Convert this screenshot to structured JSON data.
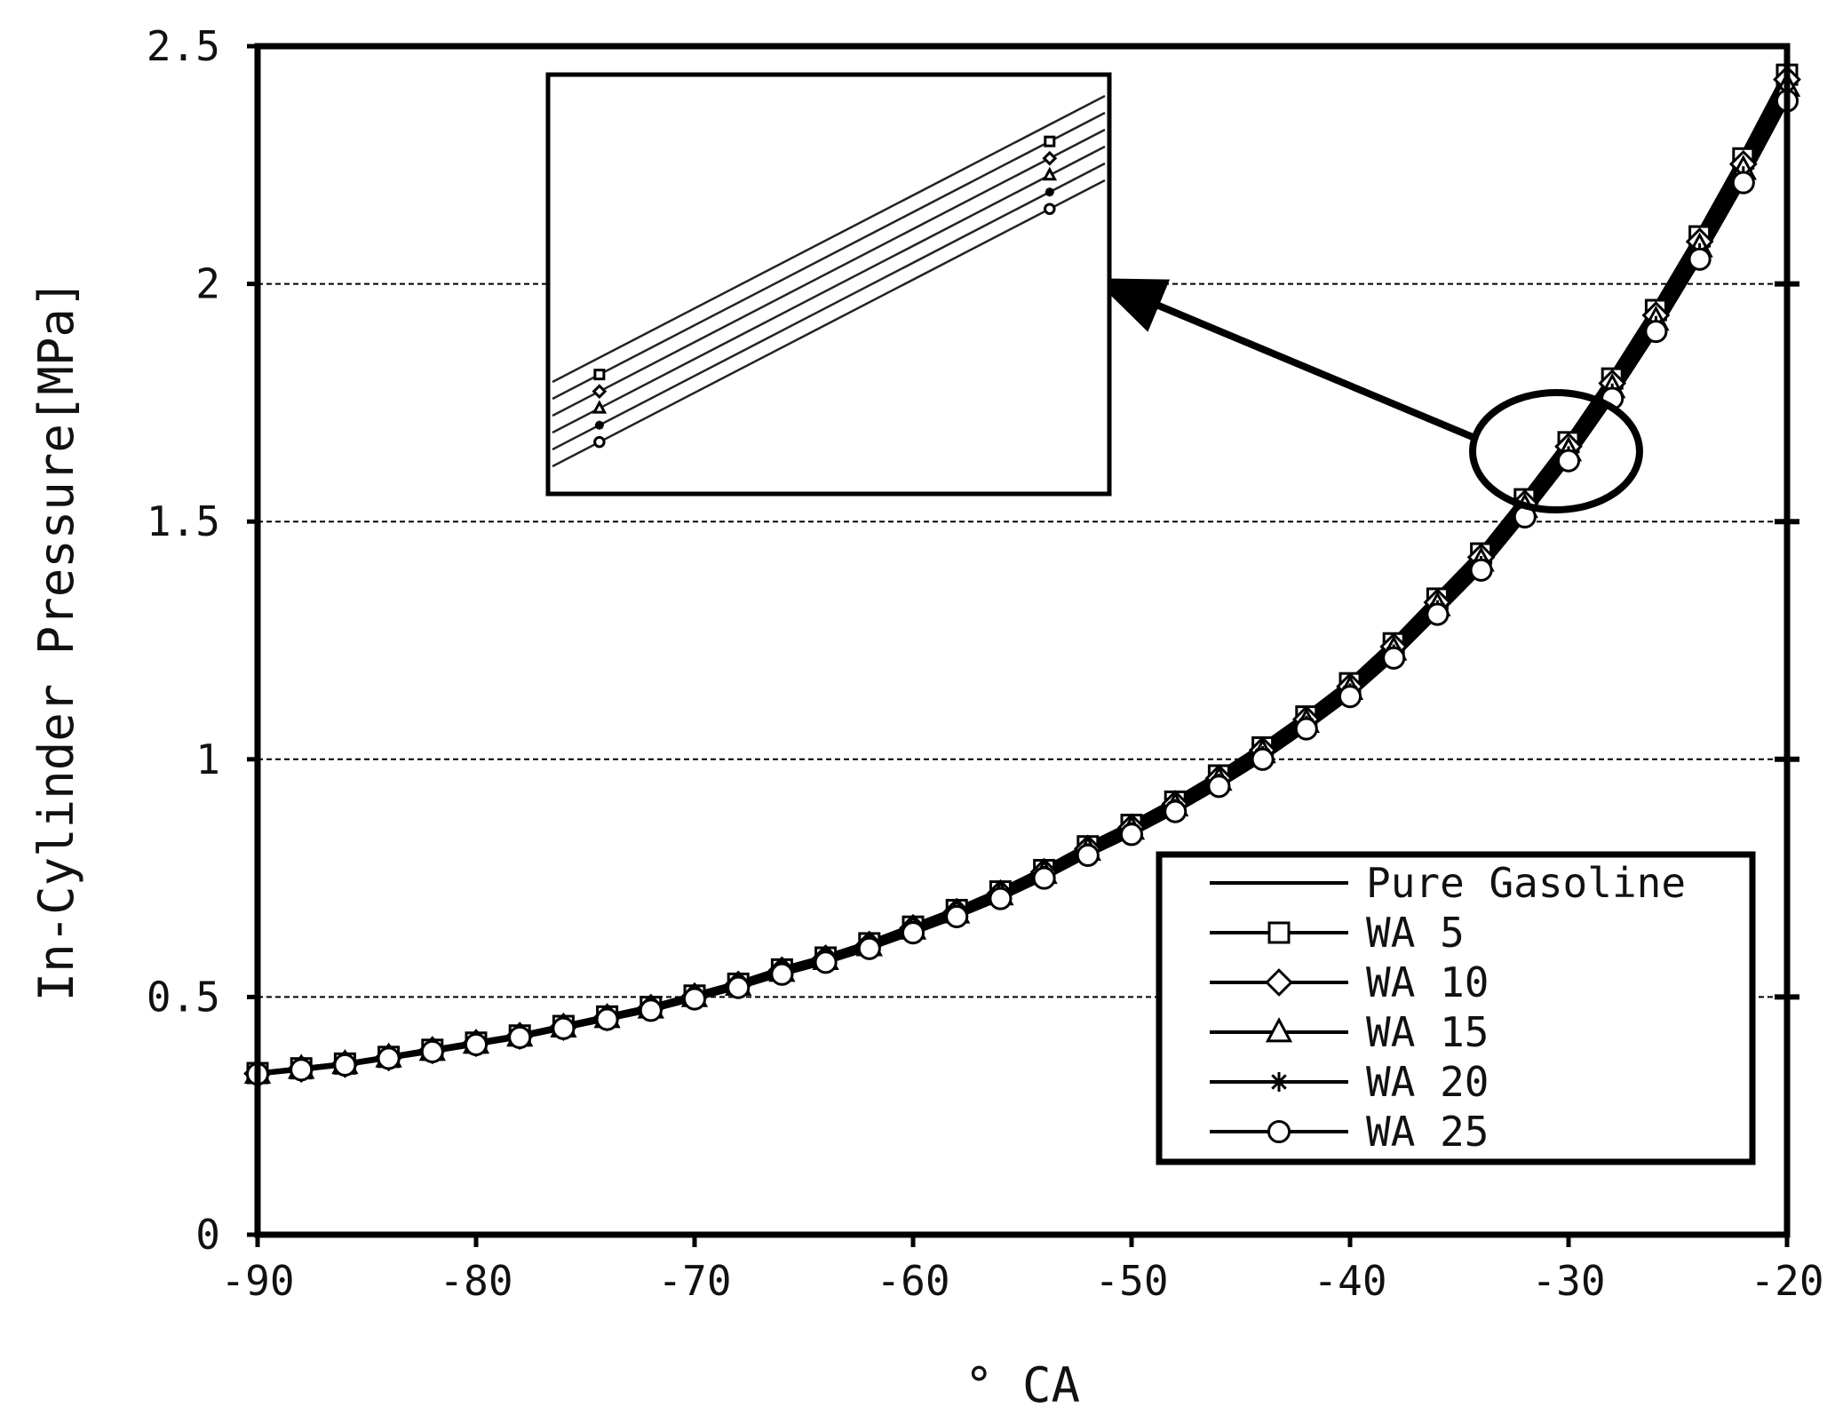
{
  "chart_data": {
    "type": "line",
    "title": "",
    "xlabel": "° CA",
    "ylabel": "In-Cylinder Pressure[MPa]",
    "xlim": [
      -90,
      -20
    ],
    "ylim": [
      0,
      2.5
    ],
    "x_ticks": [
      -90,
      -80,
      -70,
      -60,
      -50,
      -40,
      -30,
      -20
    ],
    "y_ticks": [
      0,
      0.5,
      1,
      1.5,
      2,
      2.5
    ],
    "x_tick_labels": [
      "-90",
      "-80",
      "-70",
      "-60",
      "-50",
      "-40",
      "-30",
      "-20"
    ],
    "y_tick_labels": [
      "0",
      "0.5",
      "1",
      "1.5",
      "2",
      "2.5"
    ],
    "grid": "horizontal-dashed",
    "legend_position": "lower-right",
    "x": [
      -90,
      -88,
      -86,
      -84,
      -82,
      -80,
      -78,
      -76,
      -74,
      -72,
      -70,
      -68,
      -66,
      -64,
      -62,
      -60,
      -58,
      -56,
      -54,
      -52,
      -50,
      -48,
      -46,
      -44,
      -42,
      -40,
      -38,
      -36,
      -34,
      -32,
      -30,
      -28,
      -26,
      -24,
      -22,
      -20
    ],
    "series": [
      {
        "name": "Pure Gasoline",
        "marker": "none",
        "values": [
          0.34,
          0.35,
          0.36,
          0.375,
          0.39,
          0.405,
          0.42,
          0.44,
          0.46,
          0.48,
          0.505,
          0.53,
          0.56,
          0.585,
          0.615,
          0.65,
          0.685,
          0.725,
          0.77,
          0.82,
          0.865,
          0.915,
          0.97,
          1.03,
          1.095,
          1.165,
          1.25,
          1.345,
          1.44,
          1.555,
          1.675,
          1.81,
          1.955,
          2.11,
          2.275,
          2.45
        ]
      },
      {
        "name": "WA 5",
        "marker": "square",
        "values": [
          0.34,
          0.35,
          0.36,
          0.374,
          0.389,
          0.404,
          0.419,
          0.439,
          0.459,
          0.479,
          0.503,
          0.528,
          0.558,
          0.583,
          0.613,
          0.648,
          0.683,
          0.722,
          0.767,
          0.817,
          0.862,
          0.911,
          0.966,
          1.025,
          1.09,
          1.16,
          1.244,
          1.338,
          1.433,
          1.547,
          1.667,
          1.801,
          1.945,
          2.1,
          2.264,
          2.44
        ]
      },
      {
        "name": "WA 10",
        "marker": "diamond",
        "values": [
          0.339,
          0.349,
          0.359,
          0.373,
          0.388,
          0.403,
          0.418,
          0.437,
          0.457,
          0.477,
          0.501,
          0.526,
          0.556,
          0.581,
          0.61,
          0.645,
          0.679,
          0.718,
          0.763,
          0.812,
          0.857,
          0.906,
          0.96,
          1.019,
          1.084,
          1.153,
          1.237,
          1.33,
          1.425,
          1.538,
          1.658,
          1.791,
          1.934,
          2.089,
          2.252,
          2.43
        ]
      },
      {
        "name": "WA 15",
        "marker": "triangle",
        "values": [
          0.339,
          0.349,
          0.359,
          0.373,
          0.387,
          0.402,
          0.417,
          0.436,
          0.456,
          0.476,
          0.5,
          0.524,
          0.553,
          0.578,
          0.607,
          0.642,
          0.676,
          0.714,
          0.759,
          0.808,
          0.852,
          0.901,
          0.955,
          1.013,
          1.077,
          1.146,
          1.229,
          1.322,
          1.416,
          1.529,
          1.648,
          1.781,
          1.923,
          2.077,
          2.24,
          2.415
        ]
      },
      {
        "name": "WA 20",
        "marker": "asterisk",
        "values": [
          0.338,
          0.348,
          0.358,
          0.372,
          0.386,
          0.401,
          0.416,
          0.435,
          0.455,
          0.474,
          0.498,
          0.522,
          0.551,
          0.576,
          0.605,
          0.639,
          0.672,
          0.711,
          0.755,
          0.803,
          0.847,
          0.896,
          0.949,
          1.007,
          1.071,
          1.139,
          1.221,
          1.314,
          1.407,
          1.52,
          1.638,
          1.77,
          1.912,
          2.065,
          2.227,
          2.4
        ]
      },
      {
        "name": "WA 25",
        "marker": "circle",
        "values": [
          0.338,
          0.347,
          0.357,
          0.371,
          0.385,
          0.4,
          0.415,
          0.434,
          0.453,
          0.472,
          0.496,
          0.52,
          0.548,
          0.573,
          0.602,
          0.635,
          0.669,
          0.707,
          0.75,
          0.798,
          0.842,
          0.89,
          0.943,
          1.0,
          1.064,
          1.132,
          1.213,
          1.305,
          1.398,
          1.51,
          1.628,
          1.759,
          1.9,
          2.052,
          2.213,
          2.385
        ]
      }
    ],
    "annotations": [
      {
        "type": "zoom-inset",
        "description": "magnified view of the circled region near -30 °CA"
      }
    ]
  }
}
